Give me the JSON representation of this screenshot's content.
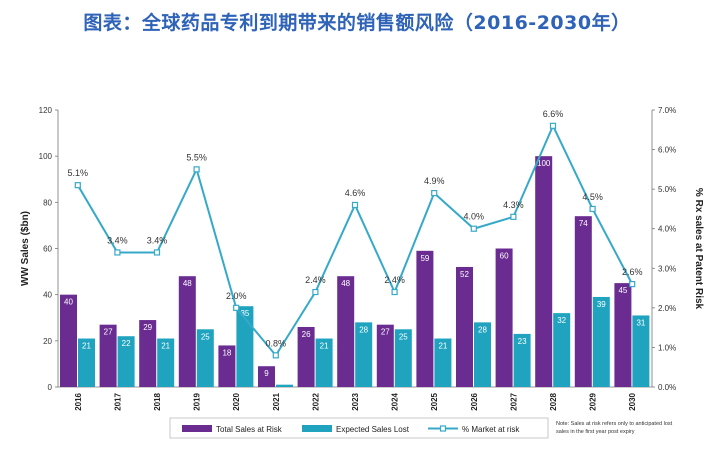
{
  "page_title": "图表：全球药品专利到期带来的销售额风险（2016-2030年）",
  "chart_data": {
    "type": "bar",
    "title": "图表：全球药品专利到期带来的销售额风险（2016-2030年）",
    "ylabel": "WW Sales ($bn)",
    "y2label": "% Rx sales at Patent Risk",
    "ylim": [
      0,
      120
    ],
    "y2lim": [
      0,
      7
    ],
    "yticks": [
      "0",
      "20",
      "40",
      "60",
      "80",
      "100",
      "120"
    ],
    "y2ticks": [
      "0.0%",
      "1.0%",
      "2.0%",
      "3.0%",
      "4.0%",
      "5.0%",
      "6.0%",
      "7.0%"
    ],
    "categories": [
      "2016",
      "2017",
      "2018",
      "2019",
      "2020",
      "2021",
      "2022",
      "2023",
      "2024",
      "2025",
      "2026",
      "2027",
      "2028",
      "2029",
      "2030"
    ],
    "series": [
      {
        "name": "Total Sales at Risk",
        "kind": "bar",
        "axis": "left",
        "color": "#6a2c91",
        "values": [
          40,
          27,
          29,
          48,
          18,
          9,
          26,
          48,
          27,
          59,
          52,
          60,
          100,
          74,
          45
        ]
      },
      {
        "name": "Expected Sales Lost",
        "kind": "bar",
        "axis": "left",
        "color": "#1fa3bf",
        "values": [
          21,
          22,
          21,
          25,
          35,
          1,
          21,
          28,
          25,
          21,
          28,
          23,
          32,
          39,
          31
        ]
      },
      {
        "name": "% Market at risk",
        "kind": "line",
        "axis": "right",
        "color": "#36a9c9",
        "values": [
          5.1,
          3.4,
          3.4,
          5.5,
          2.0,
          0.8,
          2.4,
          4.6,
          2.4,
          4.9,
          4.0,
          4.3,
          6.6,
          4.5,
          2.6
        ],
        "labels": [
          "5.1%",
          "3.4%",
          "3.4%",
          "5.5%",
          "2.0%",
          "0.8%",
          "2.4%",
          "4.6%",
          "2.4%",
          "4.9%",
          "4.0%",
          "4.3%",
          "6.6%",
          "4.5%",
          "2.6%"
        ]
      }
    ],
    "legend": {
      "position": "bottom"
    },
    "note": "Note: Sales at risk refers only to anticipated lost sales in the first year post expiry",
    "grid": false
  }
}
